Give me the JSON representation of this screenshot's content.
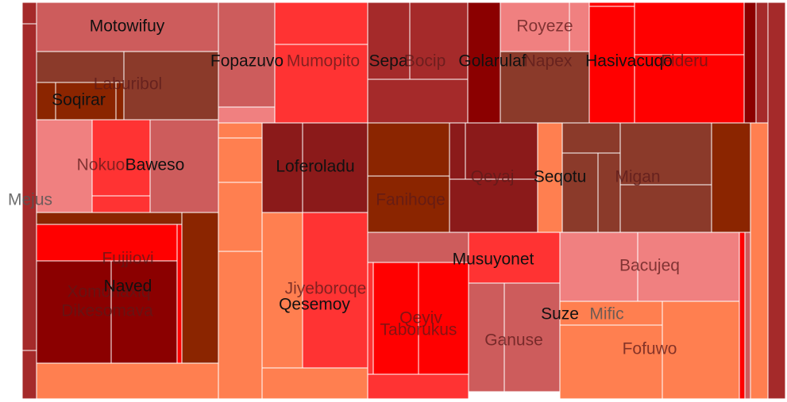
{
  "chart_data": {
    "type": "treemap",
    "title": "",
    "colors": {
      "dark_red": "#8B0000",
      "crimson": "#A52A2A",
      "firebrick": "#8B1A1A",
      "red": "#FF0000",
      "tomato": "#FF3333",
      "salmon": "#F08080",
      "light_salmon": "#FF7F50",
      "rust": "#8B2500",
      "sienna": "#8B3A2A",
      "indian_red": "#CD5C5C"
    },
    "labels": [
      {
        "text": "Mejus",
        "level": 0
      },
      {
        "text": "Motowifuy",
        "level": 2
      },
      {
        "text": "Laburibol",
        "level": 1
      },
      {
        "text": "Soqirar",
        "level": 2
      },
      {
        "text": "Nokuo",
        "level": 1
      },
      {
        "text": "Baweso",
        "level": 2
      },
      {
        "text": "Fujjiovi",
        "level": 1
      },
      {
        "text": "Xomohaxiq",
        "level": 1
      },
      {
        "text": "Naved",
        "level": 2
      },
      {
        "text": "Dikesomava",
        "level": 1
      },
      {
        "text": "Fopazuvo",
        "level": 2
      },
      {
        "text": "Mumopito",
        "level": 1
      },
      {
        "text": "Loferoladu",
        "level": 2
      },
      {
        "text": "Jiyeboroqe",
        "level": 1
      },
      {
        "text": "Qesemoy",
        "level": 2
      },
      {
        "text": "Sepa",
        "level": 2
      },
      {
        "text": "Bocip",
        "level": 1
      },
      {
        "text": "Golarulaf",
        "level": 2
      },
      {
        "text": "Fanihoqe",
        "level": 1
      },
      {
        "text": "Qeyaj",
        "level": 1
      },
      {
        "text": "Seqotu",
        "level": 2
      },
      {
        "text": "Musuyonet",
        "level": 2
      },
      {
        "text": "Taborukus",
        "level": 1
      },
      {
        "text": "Qeyiv",
        "level": 1
      },
      {
        "text": "Ganuse",
        "level": 1
      },
      {
        "text": "Royeze",
        "level": 1
      },
      {
        "text": "Napex",
        "level": 1
      },
      {
        "text": "Hasivacuqo",
        "level": 2
      },
      {
        "text": "Fideru",
        "level": 1
      },
      {
        "text": "Migan",
        "level": 1
      },
      {
        "text": "Bacujeq",
        "level": 1
      },
      {
        "text": "Suze",
        "level": 2
      },
      {
        "text": "Mific",
        "level": 0
      },
      {
        "text": "Fofuwo",
        "level": 1
      }
    ]
  }
}
